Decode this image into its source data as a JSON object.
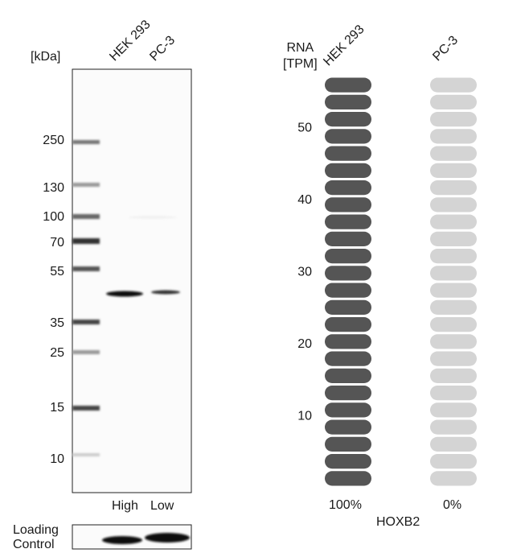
{
  "western_blot": {
    "unit_label": "[kDa]",
    "lanes": [
      "HEK 293",
      "PC-3"
    ],
    "lane_levels": [
      "High",
      "Low"
    ],
    "marker_labels": [
      "250",
      "130",
      "100",
      "70",
      "55",
      "35",
      "25",
      "15",
      "10"
    ],
    "loading_control_label": [
      "Loading",
      "Control"
    ]
  },
  "chart_data": {
    "type": "bar",
    "title": "",
    "gene": "HOXB2",
    "ylabel": [
      "RNA",
      "[TPM]"
    ],
    "categories": [
      "HEK 293",
      "PC-3"
    ],
    "values_percent": [
      100,
      0
    ],
    "value_labels": [
      "100%",
      "0%"
    ],
    "yticks": [
      "10",
      "20",
      "30",
      "40",
      "50"
    ],
    "ylim": [
      0,
      57
    ],
    "segments_per_bar": 24,
    "colors": {
      "filled": "#555555",
      "empty": "#d4d4d4"
    }
  }
}
